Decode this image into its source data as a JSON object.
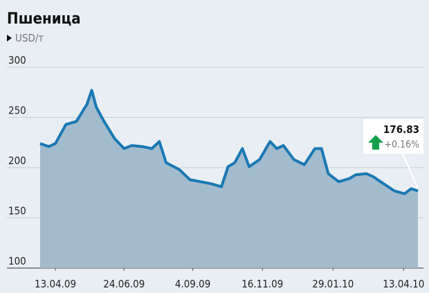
{
  "chart_data": {
    "type": "area",
    "title": "Пшеница",
    "subtitle": "USD/т",
    "callout": {
      "value": "176.83",
      "change": "+0.16%"
    },
    "x": [
      "2009-03-28",
      "2009-04-06",
      "2009-04-13",
      "2009-04-24",
      "2009-05-05",
      "2009-05-16",
      "2009-05-21",
      "2009-05-26",
      "2009-06-03",
      "2009-06-14",
      "2009-06-24",
      "2009-07-02",
      "2009-07-13",
      "2009-07-23",
      "2009-07-31",
      "2009-08-07",
      "2009-08-21",
      "2009-09-01",
      "2009-09-12",
      "2009-09-23",
      "2009-10-04",
      "2009-10-11",
      "2009-10-18",
      "2009-10-26",
      "2009-11-02",
      "2009-11-13",
      "2009-11-24",
      "2009-12-01",
      "2009-12-08",
      "2009-12-19",
      "2009-12-30",
      "2010-01-10",
      "2010-01-17",
      "2010-01-24",
      "2010-02-04",
      "2010-02-15",
      "2010-02-22",
      "2010-03-05",
      "2010-03-12",
      "2010-03-23",
      "2010-04-03",
      "2010-04-14",
      "2010-04-21",
      "2010-04-28"
    ],
    "series": [
      {
        "name": "Пшеница",
        "color": "#1a78b4",
        "values": [
          224,
          221,
          224,
          243,
          246,
          263,
          277,
          260,
          246,
          229,
          219,
          222,
          221,
          219,
          226,
          205,
          198,
          188,
          186,
          184,
          181,
          201,
          205,
          219,
          201,
          208,
          226,
          219,
          222,
          208,
          203,
          219,
          219,
          194,
          186,
          189,
          193,
          194,
          191,
          184,
          177,
          174,
          179,
          176.83
        ]
      }
    ],
    "xlim": [
      "2009-03-28",
      "2010-04-28"
    ],
    "xticks": [
      {
        "value": "2009-04-13",
        "label": "13.04.09"
      },
      {
        "value": "2009-06-24",
        "label": "24.06.09"
      },
      {
        "value": "2009-09-04",
        "label": "4.09.09"
      },
      {
        "value": "2009-11-16",
        "label": "16.11.09"
      },
      {
        "value": "2010-01-29",
        "label": "29.01.10"
      },
      {
        "value": "2010-04-13",
        "label": "13.04.10"
      }
    ],
    "ylim": [
      100,
      300
    ],
    "yticks": [
      100,
      150,
      200,
      250,
      300
    ],
    "grid": true
  }
}
